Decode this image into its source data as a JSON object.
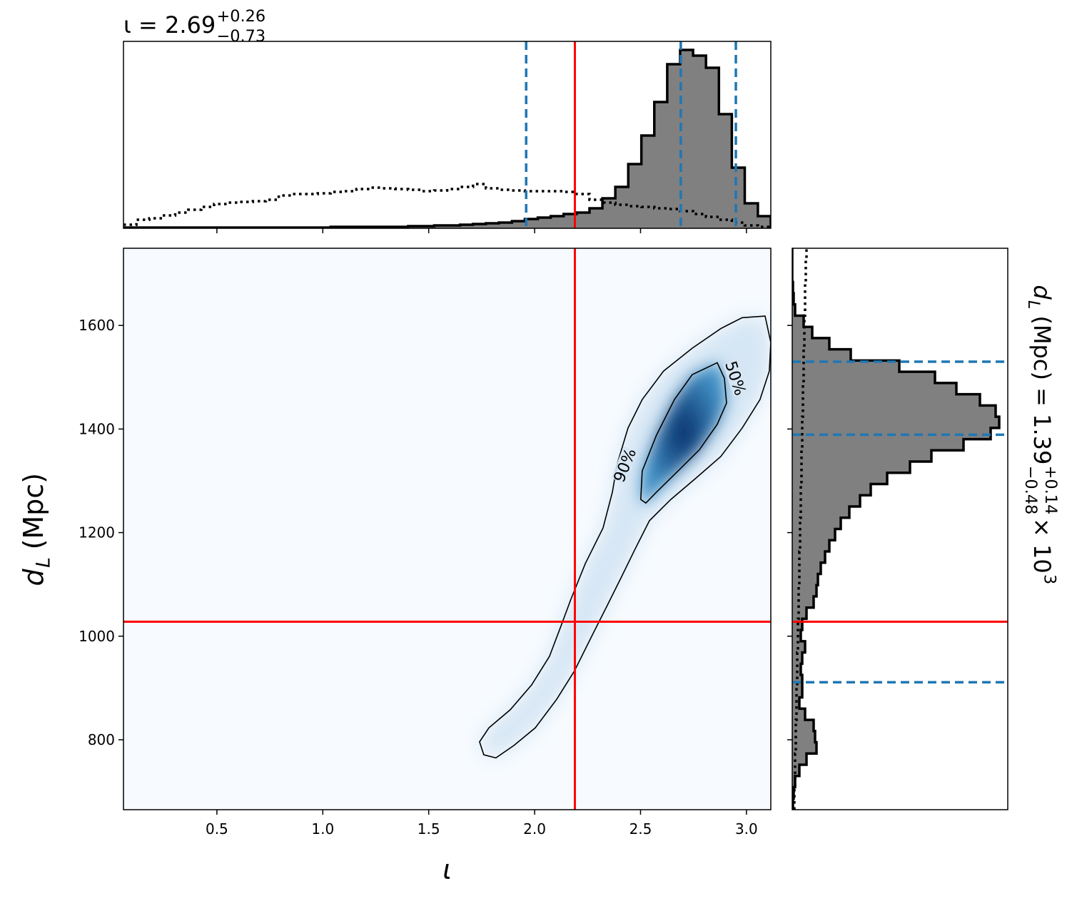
{
  "chart_data": [
    {
      "type": "histogram",
      "title": {
        "text": "ι = 2.69",
        "upper": "+0.26",
        "lower": "−0.73"
      },
      "bins": [
        0.059,
        0.12,
        0.181,
        0.242,
        0.303,
        0.365,
        0.426,
        0.487,
        0.548,
        0.609,
        0.67,
        0.731,
        0.792,
        0.853,
        0.915,
        0.976,
        1.037,
        1.098,
        1.159,
        1.22,
        1.281,
        1.342,
        1.403,
        1.465,
        1.526,
        1.587,
        1.648,
        1.709,
        1.77,
        1.831,
        1.893,
        1.954,
        2.015,
        2.076,
        2.137,
        2.198,
        2.259,
        2.32,
        2.381,
        2.442,
        2.504,
        2.565,
        2.626,
        2.687,
        2.748,
        2.809,
        2.87,
        2.931,
        2.992,
        3.054,
        3.115
      ],
      "values": [
        1,
        1,
        1,
        1,
        1,
        1,
        1,
        1,
        1,
        1,
        1,
        1,
        1,
        1,
        1,
        1,
        2,
        2,
        2,
        2,
        2,
        2,
        3,
        3,
        4,
        4,
        5,
        6,
        7,
        8,
        10,
        13,
        15,
        17,
        20,
        22,
        28,
        42,
        58,
        90,
        130,
        177,
        230,
        250,
        242,
        225,
        160,
        85,
        35,
        17
      ],
      "prior": [
        5,
        12,
        14,
        18,
        22,
        26,
        30,
        34,
        36,
        37,
        38,
        40,
        46,
        48,
        48,
        49,
        51,
        52,
        55,
        57,
        56,
        55,
        54,
        52,
        53,
        55,
        58,
        62,
        56,
        54,
        53,
        52,
        52,
        52,
        51,
        48,
        40,
        36,
        33,
        31,
        30,
        28,
        27,
        24,
        20,
        16,
        12,
        8,
        4,
        2
      ],
      "color": "#808080",
      "xlim": [
        0.059,
        3.115
      ],
      "ylim": [
        0,
        262
      ],
      "quantiles": [
        1.96,
        2.69,
        2.95
      ],
      "quantile_color": "#1f77b4",
      "truth": 2.19,
      "truth_color": "#ff0000"
    },
    {
      "type": "contour",
      "xlabel": "ι",
      "ylabel": {
        "symbol": "d",
        "subscript": "L",
        "text": "(Mpc)"
      },
      "xlim": [
        0.059,
        3.115
      ],
      "ylim": [
        665,
        1749
      ],
      "xticks": [
        0.5,
        {
          "value": 1,
          "label": "1.0"
        },
        1.5,
        {
          "value": 2,
          "label": "2.0"
        },
        2.5,
        {
          "value": 3,
          "label": "3.0"
        }
      ],
      "yticks": [
        800,
        1000,
        1200,
        1400,
        1600
      ],
      "colors": [
        "#f7fbff",
        "#d6e6f4",
        "#4292c6",
        "#08306b"
      ],
      "contours": [
        {
          "label": "90%",
          "x": [
            3.088,
            2.98,
            2.879,
            2.744,
            2.609,
            2.508,
            2.441,
            2.39,
            2.367,
            2.323,
            2.239,
            2.171,
            2.121,
            2.07,
            1.986,
            1.885,
            1.784,
            1.74,
            1.76,
            1.817,
            1.902,
            2.003,
            2.104,
            2.188,
            2.272,
            2.34,
            2.407,
            2.474,
            2.542,
            2.643,
            2.761,
            2.879,
            2.98,
            3.064,
            3.108,
            3.115
          ],
          "y": [
            1618,
            1615,
            1594,
            1556,
            1512,
            1457,
            1402,
            1333,
            1278,
            1209,
            1140,
            1071,
            1016,
            961,
            906,
            858,
            823,
            796,
            771,
            765,
            789,
            823,
            878,
            933,
            1002,
            1057,
            1112,
            1168,
            1223,
            1264,
            1305,
            1347,
            1402,
            1457,
            1512,
            1567
          ]
        },
        {
          "label": "50%",
          "x": [
            2.862,
            2.744,
            2.66,
            2.575,
            2.508,
            2.501,
            2.525,
            2.575,
            2.677,
            2.778,
            2.862,
            2.906,
            2.896
          ],
          "y": [
            1528,
            1505,
            1457,
            1388,
            1319,
            1264,
            1257,
            1278,
            1319,
            1360,
            1409,
            1450,
            1498
          ]
        }
      ],
      "truth": {
        "x": 2.19,
        "y": 1028
      },
      "truth_color": "#ff0000"
    },
    {
      "type": "histogram",
      "orientation": "horizontal",
      "label": {
        "symbol": "d",
        "subscript": "L",
        "text": "(Mpc) = 1.39",
        "upper": "+0.14",
        "lower": "−0.48",
        "tail": "× 10",
        "exponent": "3"
      },
      "bins": [
        665,
        686.7,
        708.4,
        730.0,
        751.7,
        773.4,
        795.1,
        816.8,
        838.4,
        860.1,
        881.8,
        903.5,
        925.2,
        946.8,
        968.5,
        990.2,
        1011.9,
        1033.6,
        1055.2,
        1076.9,
        1098.6,
        1120.3,
        1142.0,
        1163.6,
        1185.3,
        1207.0,
        1228.7,
        1250.4,
        1272.0,
        1293.7,
        1315.4,
        1337.1,
        1358.8,
        1380.4,
        1402.1,
        1423.8,
        1445.5,
        1467.2,
        1488.8,
        1510.5,
        1532.2,
        1553.9,
        1575.6,
        1597.2,
        1618.9,
        1640.6,
        1662.3,
        1684.0,
        1705.6,
        1727.3,
        1749
      ],
      "values": [
        1,
        2,
        4,
        10,
        20,
        34,
        32,
        30,
        18,
        10,
        14,
        14,
        12,
        14,
        18,
        12,
        14,
        20,
        30,
        34,
        36,
        40,
        46,
        52,
        60,
        68,
        80,
        95,
        110,
        133,
        165,
        195,
        240,
        278,
        290,
        285,
        263,
        230,
        200,
        150,
        82,
        52,
        28,
        16,
        4,
        2,
        1,
        0,
        0,
        0
      ],
      "prior": [
        3,
        3,
        4,
        4,
        4,
        5,
        5,
        5,
        6,
        6,
        6,
        7,
        7,
        7,
        8,
        8,
        8,
        9,
        9,
        9,
        10,
        10,
        10,
        11,
        11,
        11,
        12,
        12,
        12,
        13,
        13,
        13,
        14,
        14,
        14,
        15,
        15,
        15,
        16,
        16,
        16,
        17,
        17,
        17,
        18,
        18,
        18,
        19,
        19,
        20
      ],
      "color": "#808080",
      "xlim": [
        0,
        302
      ],
      "ylim": [
        665,
        1749
      ],
      "quantiles": [
        911,
        1389,
        1530
      ],
      "quantile_color": "#1f77b4",
      "truth": 1028,
      "truth_color": "#ff0000"
    }
  ]
}
